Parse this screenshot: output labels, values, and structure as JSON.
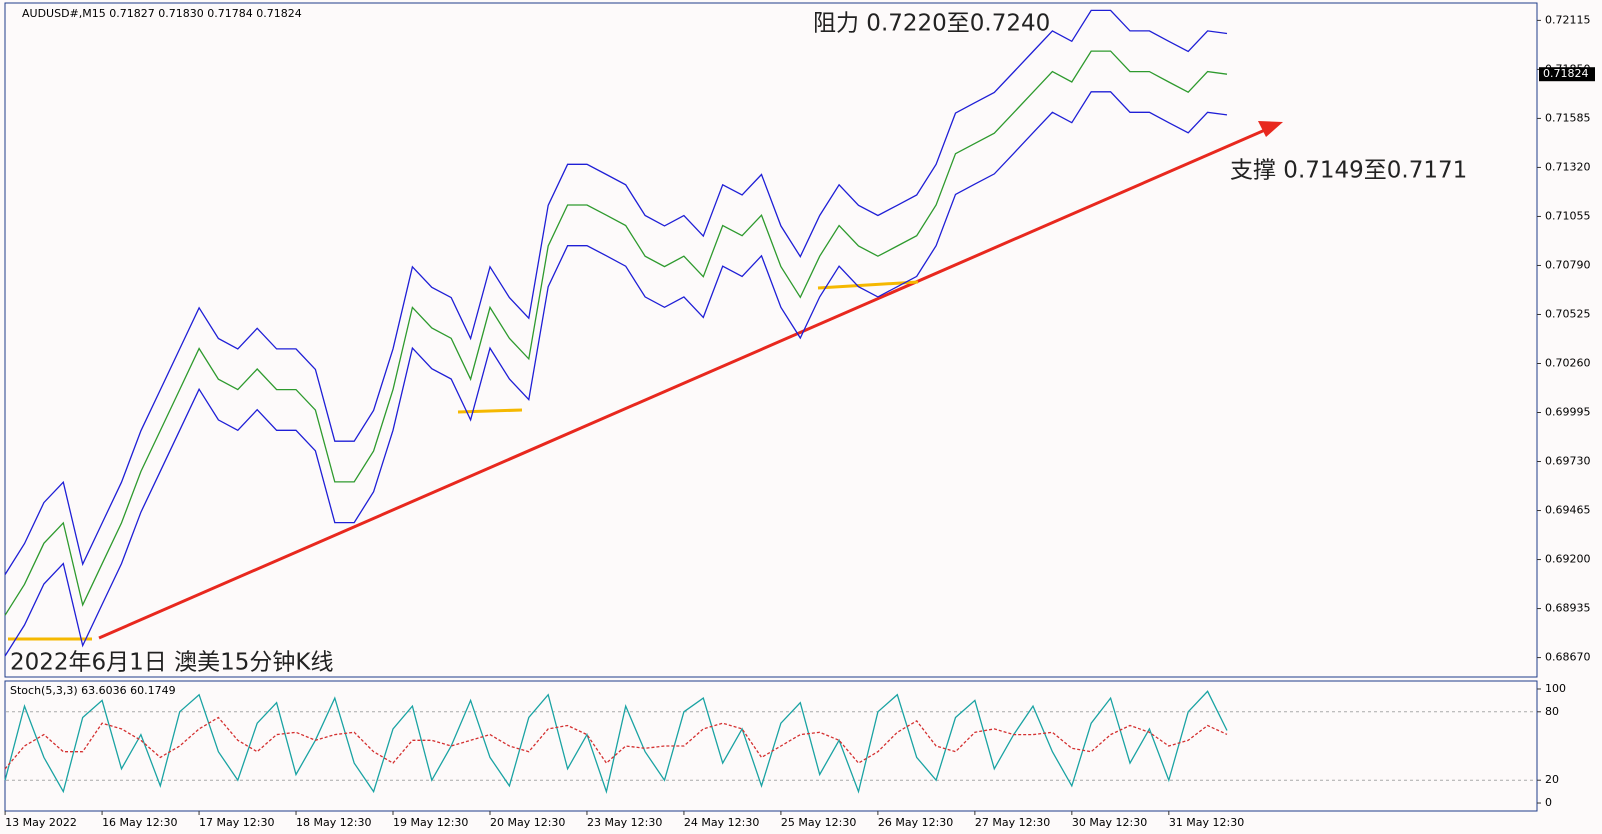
{
  "chart_data": [
    {
      "type": "line",
      "title": "AUDUSD#,M15  0.71827 0.71830 0.71784 0.71824",
      "annotations": [
        "阻力 0.7220至0.7240",
        "支撑 0.7149至0.7171",
        "2022年6月1日 澳美15分钟K线"
      ],
      "last_price": 0.71824,
      "last_price_color": "#000000",
      "xlim": [
        0,
        63
      ],
      "xticks": [
        {
          "value": 0,
          "label": "13 May 2022"
        },
        {
          "value": 5,
          "label": "16 May 12:30"
        },
        {
          "value": 10,
          "label": "17 May 12:30"
        },
        {
          "value": 15,
          "label": "18 May 12:30"
        },
        {
          "value": 20,
          "label": "19 May 12:30"
        },
        {
          "value": 25,
          "label": "20 May 12:30"
        },
        {
          "value": 30,
          "label": "23 May 12:30"
        },
        {
          "value": 35,
          "label": "24 May 12:30"
        },
        {
          "value": 40,
          "label": "25 May 12:30"
        },
        {
          "value": 45,
          "label": "26 May 12:30"
        },
        {
          "value": 50,
          "label": "27 May 12:30"
        },
        {
          "value": 55,
          "label": "30 May 12:30"
        },
        {
          "value": 60,
          "label": "31 May 12:30"
        }
      ],
      "ylim": [
        0.68565,
        0.72209
      ],
      "yticks": [
        0.72115,
        {
          "value": 0.7185,
          "label": "0.71850"
        },
        0.71585,
        {
          "value": 0.7132,
          "label": "0.71320"
        },
        0.71055,
        {
          "value": 0.7079,
          "label": "0.70790"
        },
        0.70525,
        {
          "value": 0.7026,
          "label": "0.70260"
        },
        0.69995,
        {
          "value": 0.6973,
          "label": "0.69730"
        },
        0.69465,
        {
          "value": 0.692,
          "label": "0.69200"
        },
        0.68935,
        {
          "value": 0.6867,
          "label": "0.68670"
        }
      ],
      "series": [
        {
          "color": "#2e9a2e",
          "values": [
            0.68899,
            0.69066,
            0.69288,
            0.69398,
            0.68955,
            0.69177,
            0.69398,
            0.69676,
            0.69897,
            0.70119,
            0.70341,
            0.70175,
            0.70119,
            0.7023,
            0.70119,
            0.70119,
            0.70008,
            0.6962,
            0.6962,
            0.69787,
            0.70119,
            0.70563,
            0.70452,
            0.70396,
            0.70175,
            0.70563,
            0.70396,
            0.70285,
            0.70895,
            0.71117,
            0.71117,
            0.71062,
            0.71006,
            0.7084,
            0.70784,
            0.7084,
            0.70729,
            0.71006,
            0.70951,
            0.71062,
            0.70784,
            0.70618,
            0.7084,
            0.71006,
            0.70895,
            0.7084,
            0.70895,
            0.70951,
            0.71117,
            0.71394,
            0.7145,
            0.71505,
            0.71616,
            0.71727,
            0.71838,
            0.71782,
            0.71949,
            0.71949,
            0.71838,
            0.71838,
            0.71782,
            0.71727,
            0.71838,
            0.71824
          ]
        },
        {
          "color": "#1f1fd6",
          "values": [
            0.69119,
            0.69286,
            0.69508,
            0.69618,
            0.69175,
            0.69397,
            0.69618,
            0.69896,
            0.70117,
            0.70339,
            0.70561,
            0.70395,
            0.70339,
            0.7045,
            0.70339,
            0.70339,
            0.70228,
            0.6984,
            0.6984,
            0.70007,
            0.70339,
            0.70783,
            0.70672,
            0.70616,
            0.70395,
            0.70783,
            0.70616,
            0.70505,
            0.71115,
            0.71337,
            0.71337,
            0.71282,
            0.71226,
            0.7106,
            0.71004,
            0.7106,
            0.70949,
            0.71226,
            0.71171,
            0.71282,
            0.71004,
            0.70838,
            0.7106,
            0.71226,
            0.71115,
            0.7106,
            0.71115,
            0.71171,
            0.71337,
            0.71614,
            0.7167,
            0.71725,
            0.71836,
            0.71947,
            0.72058,
            0.72002,
            0.72169,
            0.72169,
            0.72058,
            0.72058,
            0.72002,
            0.71947,
            0.72058,
            0.72044
          ]
        },
        {
          "color": "#1f1fd6",
          "values": [
            0.68679,
            0.68846,
            0.69068,
            0.69178,
            0.68735,
            0.68957,
            0.69178,
            0.69456,
            0.69677,
            0.69899,
            0.70121,
            0.69955,
            0.69899,
            0.7001,
            0.69899,
            0.69899,
            0.69788,
            0.694,
            0.694,
            0.69567,
            0.69899,
            0.70343,
            0.70232,
            0.70176,
            0.69955,
            0.70343,
            0.70176,
            0.70065,
            0.70675,
            0.70897,
            0.70897,
            0.70842,
            0.70786,
            0.7062,
            0.70564,
            0.7062,
            0.70509,
            0.70786,
            0.70731,
            0.70842,
            0.70564,
            0.70398,
            0.7062,
            0.70786,
            0.70675,
            0.7062,
            0.70675,
            0.70731,
            0.70897,
            0.71174,
            0.7123,
            0.71285,
            0.71396,
            0.71507,
            0.71618,
            0.71562,
            0.71729,
            0.71729,
            0.71618,
            0.71618,
            0.71562,
            0.71507,
            0.71618,
            0.71604
          ]
        }
      ]
    },
    {
      "type": "line",
      "title": "Stoch(5,3,3) 63.6036 60.1749",
      "ylim": [
        -7,
        107
      ],
      "yticks": [
        100,
        80,
        20,
        0
      ],
      "levels": [
        80,
        20
      ],
      "series": [
        {
          "color": "#1aa3a3",
          "values": [
            20,
            85,
            40,
            10,
            75,
            90,
            30,
            60,
            15,
            80,
            95,
            45,
            20,
            70,
            88,
            25,
            55,
            92,
            35,
            10,
            65,
            85,
            20,
            50,
            90,
            40,
            15,
            75,
            95,
            30,
            60,
            10,
            85,
            45,
            20,
            80,
            92,
            35,
            65,
            15,
            70,
            88,
            25,
            55,
            10,
            80,
            95,
            40,
            20,
            75,
            90,
            30,
            60,
            85,
            45,
            15,
            70,
            92,
            35,
            65,
            20,
            80,
            98,
            63.6036
          ]
        },
        {
          "color": "#d43030",
          "dashed": true,
          "values": [
            30,
            50,
            60,
            45,
            45,
            70,
            65,
            55,
            40,
            50,
            65,
            75,
            55,
            45,
            60,
            62,
            55,
            60,
            62,
            45,
            35,
            55,
            55,
            50,
            55,
            60,
            50,
            45,
            65,
            68,
            60,
            35,
            50,
            48,
            50,
            50,
            65,
            70,
            65,
            40,
            50,
            60,
            62,
            55,
            35,
            45,
            62,
            72,
            50,
            45,
            62,
            65,
            60,
            60,
            62,
            48,
            45,
            60,
            68,
            62,
            50,
            55,
            68,
            60.1749
          ]
        }
      ]
    }
  ]
}
